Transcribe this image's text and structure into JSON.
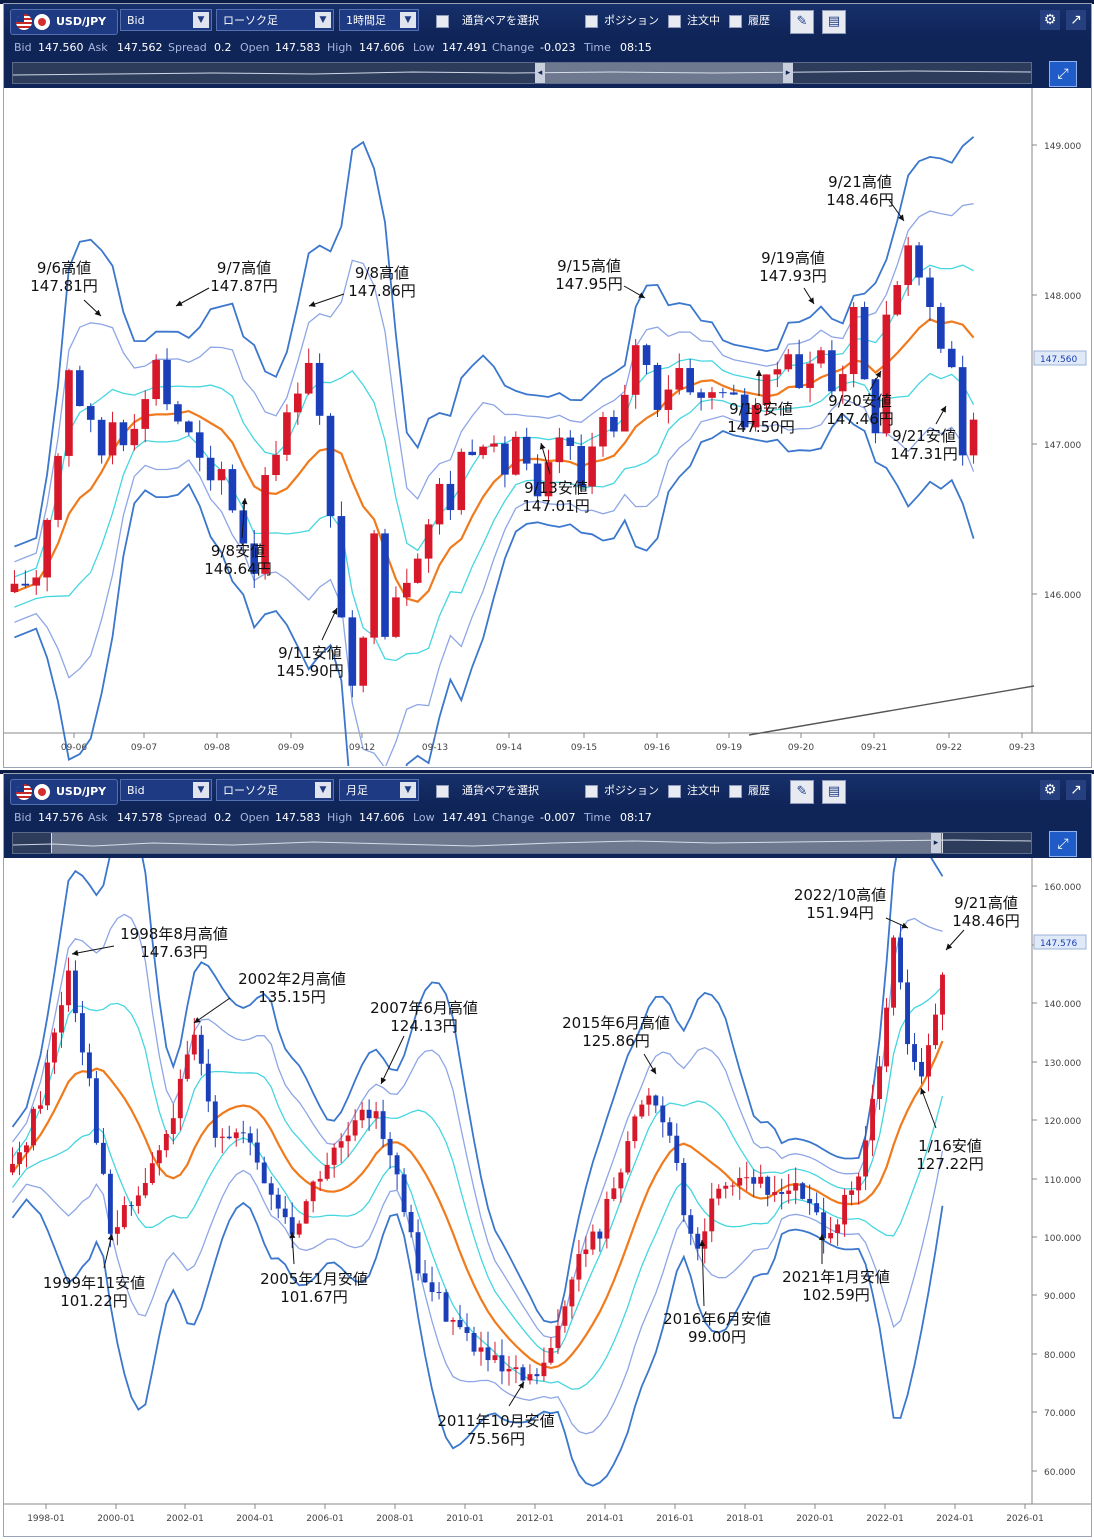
{
  "colors": {
    "up": "#d6182a",
    "down": "#1a3fb8",
    "ma": "#f07a1c",
    "band1": "#45d6e0",
    "band2": "#8ea6e6",
    "band3": "#3b77cc",
    "axis": "#555555",
    "bg": "#ffffff",
    "toolbar": "#0f2457"
  },
  "panels": [
    {
      "toolbar": {
        "symbol": "USD/JPY",
        "price_type": "Bid",
        "chart_type": "ローソク足",
        "timeframe": "1時間足",
        "pair_select": "通貨ペアを選択",
        "position": "ポジション",
        "orders": "注文中",
        "history": "履歴"
      },
      "quote": {
        "bid_label": "Bid",
        "bid": "147.560",
        "ask_label": "Ask",
        "ask": "147.562",
        "spread_label": "Spread",
        "spread": "0.2",
        "open_label": "Open",
        "open": "147.583",
        "high_label": "High",
        "high": "147.606",
        "low_label": "Low",
        "low": "147.491",
        "change_label": "Change",
        "change": "-0.023",
        "time_label": "Time",
        "time": "08:15"
      },
      "chart_data": {
        "type": "candlestick",
        "title": "",
        "x_ticks": [
          "09-06",
          "09-07",
          "09-08",
          "09-09",
          "09-12",
          "09-13",
          "09-14",
          "09-15",
          "09-16",
          "09-19",
          "09-20",
          "09-21",
          "09-22",
          "09-23"
        ],
        "y_ticks": [
          "149.000",
          "148.000",
          "147.000",
          "146.000"
        ],
        "ylim": [
          145.8,
          149.3
        ],
        "current_price": "147.560",
        "close_path": [
          [
            0,
            146.5
          ],
          [
            2,
            146.6
          ],
          [
            4,
            147.3
          ],
          [
            5,
            147.81
          ],
          [
            6,
            147.6
          ],
          [
            8,
            147.3
          ],
          [
            9,
            147.5
          ],
          [
            10,
            147.4
          ],
          [
            12,
            147.6
          ],
          [
            13,
            147.87
          ],
          [
            14,
            147.6
          ],
          [
            16,
            147.4
          ],
          [
            18,
            147.1
          ],
          [
            19,
            147.2
          ],
          [
            21,
            146.8
          ],
          [
            22,
            146.64
          ],
          [
            23,
            147.2
          ],
          [
            25,
            147.5
          ],
          [
            26,
            147.7
          ],
          [
            27,
            147.86
          ],
          [
            28,
            147.5
          ],
          [
            29,
            146.9
          ],
          [
            30,
            146.4
          ],
          [
            31,
            145.9
          ],
          [
            32,
            146.2
          ],
          [
            33,
            146.9
          ],
          [
            34,
            146.3
          ],
          [
            35,
            146.5
          ],
          [
            36,
            146.6
          ],
          [
            38,
            146.9
          ],
          [
            39,
            147.1
          ],
          [
            40,
            147.0
          ],
          [
            41,
            147.3
          ],
          [
            43,
            147.4
          ],
          [
            45,
            147.2
          ],
          [
            46,
            147.4
          ],
          [
            47,
            147.2
          ],
          [
            48,
            147.01
          ],
          [
            49,
            147.2
          ],
          [
            50,
            147.4
          ],
          [
            51,
            147.3
          ],
          [
            52,
            147.1
          ],
          [
            53,
            147.4
          ],
          [
            54,
            147.5
          ],
          [
            55,
            147.4
          ],
          [
            56,
            147.6
          ],
          [
            57,
            147.95
          ],
          [
            58,
            147.8
          ],
          [
            59,
            147.6
          ],
          [
            61,
            147.8
          ],
          [
            62,
            147.7
          ],
          [
            63,
            147.6
          ],
          [
            65,
            147.7
          ],
          [
            66,
            147.6
          ],
          [
            67,
            147.5
          ],
          [
            68,
            147.6
          ],
          [
            69,
            147.7
          ],
          [
            70,
            147.8
          ],
          [
            71,
            147.93
          ],
          [
            72,
            147.7
          ],
          [
            73,
            147.8
          ],
          [
            74,
            147.9
          ],
          [
            75,
            147.7
          ],
          [
            76,
            147.8
          ],
          [
            77,
            148.1
          ],
          [
            78,
            147.7
          ],
          [
            79,
            147.46
          ],
          [
            80,
            148.1
          ],
          [
            81,
            148.3
          ],
          [
            82,
            148.46
          ],
          [
            83,
            148.3
          ],
          [
            84,
            148.2
          ],
          [
            85,
            147.9
          ],
          [
            86,
            147.8
          ],
          [
            87,
            147.31
          ],
          [
            88,
            147.5
          ],
          [
            89,
            147.56
          ]
        ],
        "annotations": [
          {
            "label": "9/6高値",
            "price": "147.81円"
          },
          {
            "label": "9/7高値",
            "price": "147.87円"
          },
          {
            "label": "9/8高値",
            "price": "147.86円"
          },
          {
            "label": "9/8安値",
            "price": "146.64円"
          },
          {
            "label": "9/11安値",
            "price": "145.90円"
          },
          {
            "label": "9/13安値",
            "price": "147.01円"
          },
          {
            "label": "9/15高値",
            "price": "147.95円"
          },
          {
            "label": "9/19高値",
            "price": "147.93円"
          },
          {
            "label": "9/19安値",
            "price": "147.50円"
          },
          {
            "label": "9/20安値",
            "price": "147.46円"
          },
          {
            "label": "9/21高値",
            "price": "148.46円"
          },
          {
            "label": "9/21安値",
            "price": "147.31円"
          }
        ]
      }
    },
    {
      "toolbar": {
        "symbol": "USD/JPY",
        "price_type": "Bid",
        "chart_type": "ローソク足",
        "timeframe": "月足",
        "pair_select": "通貨ペアを選択",
        "position": "ポジション",
        "orders": "注文中",
        "history": "履歴"
      },
      "quote": {
        "bid_label": "Bid",
        "bid": "147.576",
        "ask_label": "Ask",
        "ask": "147.578",
        "spread_label": "Spread",
        "spread": "0.2",
        "open_label": "Open",
        "open": "147.583",
        "high_label": "High",
        "high": "147.606",
        "low_label": "Low",
        "low": "147.491",
        "change_label": "Change",
        "change": "-0.007",
        "time_label": "Time",
        "time": "08:17"
      },
      "chart_data": {
        "type": "candlestick",
        "title": "",
        "x_ticks": [
          "1998-01",
          "2000-01",
          "2002-01",
          "2004-01",
          "2006-01",
          "2008-01",
          "2010-01",
          "2012-01",
          "2014-01",
          "2016-01",
          "2018-01",
          "2020-01",
          "2022-01",
          "2024-01",
          "2026-01"
        ],
        "y_ticks": [
          "160.000",
          "150.000",
          "140.000",
          "130.000",
          "120.000",
          "110.000",
          "100.000",
          "90.000",
          "80.000",
          "70.000",
          "60.000"
        ],
        "ylim": [
          58,
          163
        ],
        "current_price": "147.576",
        "close_path": [
          [
            0,
            112
          ],
          [
            4,
            125
          ],
          [
            8,
            147.63
          ],
          [
            11,
            128
          ],
          [
            14,
            101.22
          ],
          [
            18,
            108
          ],
          [
            22,
            118
          ],
          [
            26,
            135.15
          ],
          [
            29,
            120
          ],
          [
            33,
            118
          ],
          [
            37,
            108
          ],
          [
            40,
            101.67
          ],
          [
            44,
            112
          ],
          [
            48,
            118
          ],
          [
            52,
            124.13
          ],
          [
            55,
            110
          ],
          [
            58,
            95
          ],
          [
            62,
            88
          ],
          [
            66,
            82
          ],
          [
            70,
            77
          ],
          [
            74,
            75.56
          ],
          [
            77,
            80
          ],
          [
            80,
            95
          ],
          [
            84,
            102
          ],
          [
            88,
            118
          ],
          [
            91,
            125.86
          ],
          [
            94,
            120
          ],
          [
            97,
            100
          ],
          [
            98,
            99.0
          ],
          [
            101,
            110
          ],
          [
            105,
            112
          ],
          [
            108,
            108
          ],
          [
            111,
            110
          ],
          [
            114,
            106
          ],
          [
            116,
            102.59
          ],
          [
            118,
            104
          ],
          [
            121,
            110
          ],
          [
            124,
            130
          ],
          [
            126,
            151.94
          ],
          [
            128,
            135
          ],
          [
            130,
            127.22
          ],
          [
            133,
            145
          ],
          [
            134,
            148.46
          ]
        ],
        "annotations": [
          {
            "label": "1998年8月高値",
            "price": "147.63円"
          },
          {
            "label": "2002年2月高値",
            "price": "135.15円"
          },
          {
            "label": "2007年6月高値",
            "price": "124.13円"
          },
          {
            "label": "1999年11安値",
            "price": "101.22円"
          },
          {
            "label": "2005年1月安値",
            "price": "101.67円"
          },
          {
            "label": "2011年10月安値",
            "price": "75.56円"
          },
          {
            "label": "2015年6月高値",
            "price": "125.86円"
          },
          {
            "label": "2016年6月安値",
            "price": "99.00円"
          },
          {
            "label": "2021年1月安値",
            "price": "102.59円"
          },
          {
            "label": "2022/10高値",
            "price": "151.94円"
          },
          {
            "label": "9/21高値",
            "price": "148.46円"
          },
          {
            "label": "1/16安値",
            "price": "127.22円"
          }
        ]
      }
    }
  ]
}
